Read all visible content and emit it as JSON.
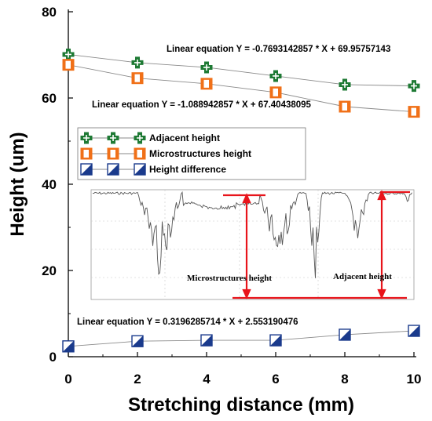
{
  "chart_data": {
    "type": "line",
    "xlabel": "Stretching distance (mm)",
    "ylabel": "Height (um)",
    "xlim": [
      0,
      10
    ],
    "ylim": [
      0,
      80
    ],
    "x_ticks": [
      "0",
      "2",
      "4",
      "6",
      "8",
      "10"
    ],
    "y_ticks": [
      "0",
      "20",
      "40",
      "60",
      "80"
    ],
    "x": [
      0,
      2,
      4,
      6,
      8,
      10
    ],
    "series": [
      {
        "name": "Adjacent height",
        "values": [
          70.1,
          68.2,
          67.1,
          65.1,
          63.1,
          62.8
        ],
        "color": "#1e7a34",
        "marker": "cross"
      },
      {
        "name": "Microstructures height",
        "values": [
          67.7,
          64.6,
          63.3,
          61.3,
          58.0,
          56.8
        ],
        "color": "#f07018",
        "marker": "half-square"
      },
      {
        "name": "Height difference",
        "values": [
          2.4,
          3.6,
          3.8,
          3.8,
          5.1,
          6.0
        ],
        "color": "#1a3a8c",
        "marker": "diag-square"
      }
    ],
    "annotations": [
      "Linear equation Y = -0.7693142857 * X + 69.95757143",
      "Linear equation Y = -1.088942857 * X + 67.40438095",
      "Linear equation Y = 0.3196285714 * X + 2.553190476"
    ],
    "legend_position": "left",
    "grid": false,
    "inset": {
      "labels": [
        "Microstructures height",
        "Adjacent height"
      ]
    }
  }
}
